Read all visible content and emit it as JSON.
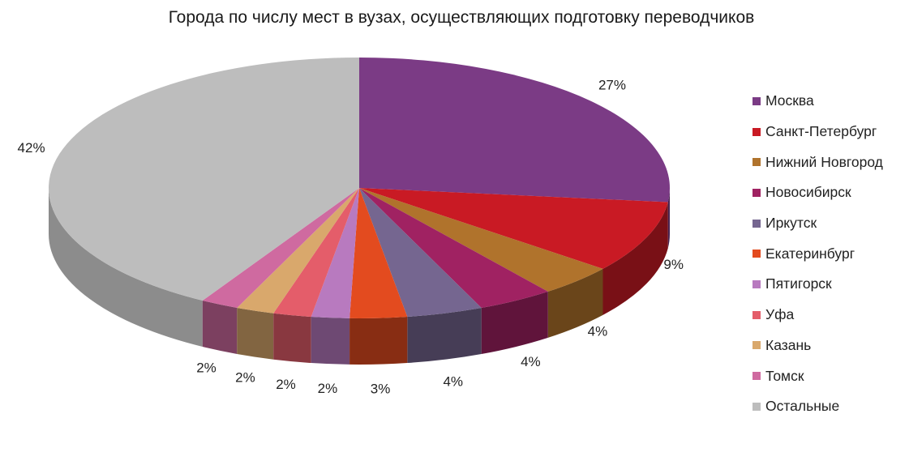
{
  "chart_data": {
    "type": "pie",
    "title": "Города по числу мест в вузах, осуществляющих подготовку переводчиков",
    "categories": [
      "Москва",
      "Санкт-Петербург",
      "Нижний Новгород",
      "Новосибирск",
      "Иркутск",
      "Екатеринбург",
      "Пятигорск",
      "Уфа",
      "Казань",
      "Томск",
      "Остальные"
    ],
    "values": [
      27,
      9,
      4,
      4,
      4,
      3,
      2,
      2,
      2,
      2,
      42
    ],
    "data_labels": [
      "27%",
      "9%",
      "4%",
      "4%",
      "4%",
      "3%",
      "2%",
      "2%",
      "2%",
      "2%",
      "42%"
    ],
    "colors": [
      "#7B3B85",
      "#C91A24",
      "#B0732C",
      "#A02262",
      "#756690",
      "#E34B1F",
      "#B87ABF",
      "#E45D6A",
      "#D9A86C",
      "#CF6AA0",
      "#BDBDBD"
    ],
    "legend_position": "right",
    "style": "3d-pie"
  }
}
